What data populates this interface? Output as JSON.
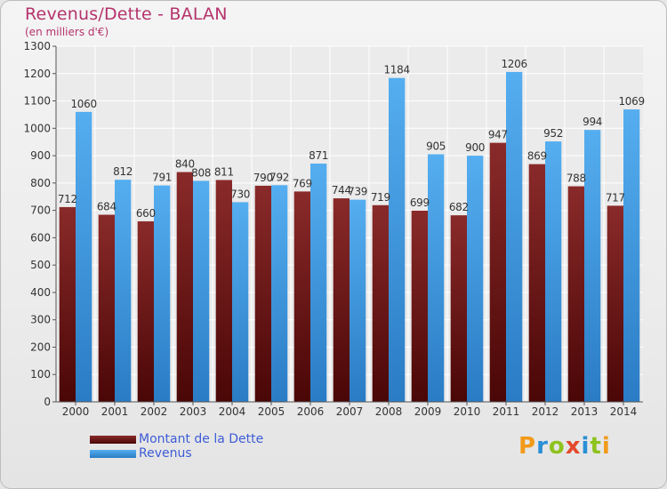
{
  "header": {
    "title": "Revenus/Dette - BALAN",
    "subtitle": "(en milliers d'€)"
  },
  "logo": {
    "letters": [
      "P",
      "r",
      "o",
      "x",
      "i",
      "t",
      "i"
    ],
    "colors": [
      "#f29a1a",
      "#2a8fd6",
      "#8fc21d",
      "#e34a2b",
      "#2a8fd6",
      "#8fc21d",
      "#f29a1a"
    ]
  },
  "chart_data": {
    "type": "bar",
    "title": "Revenus/Dette - BALAN",
    "subtitle": "(en milliers d'€)",
    "categories": [
      "2000",
      "2001",
      "2002",
      "2003",
      "2004",
      "2005",
      "2006",
      "2007",
      "2008",
      "2009",
      "2010",
      "2011",
      "2012",
      "2013",
      "2014"
    ],
    "series": [
      {
        "name": "Montant de la Dette",
        "color": "#7a1e1e",
        "values": [
          712,
          684,
          660,
          840,
          811,
          790,
          769,
          744,
          719,
          699,
          682,
          947,
          869,
          788,
          717
        ]
      },
      {
        "name": "Revenus",
        "color": "#3f9ae0",
        "values": [
          1060,
          812,
          791,
          808,
          730,
          792,
          871,
          739,
          1184,
          905,
          900,
          1206,
          952,
          994,
          1069
        ]
      }
    ],
    "yticks": [
      0,
      100,
      200,
      300,
      400,
      500,
      600,
      700,
      800,
      900,
      1000,
      1100,
      1200,
      1300
    ],
    "ylim": [
      0,
      1300
    ],
    "grid": true,
    "legend": "bottom-left"
  }
}
